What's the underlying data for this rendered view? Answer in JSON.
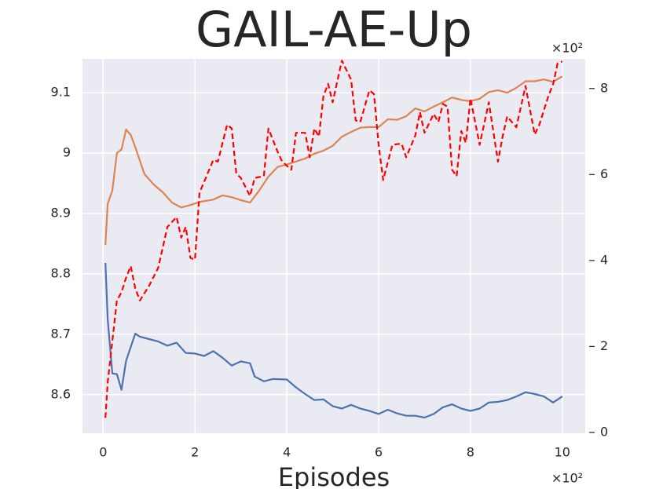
{
  "chart_data": {
    "type": "line",
    "title": "GAIL-AE-Up",
    "x_label": "Episodes",
    "x_multiplier": "×10²",
    "y2_multiplier": "×10²",
    "xlim": [
      -0.45,
      10.5
    ],
    "xticks": [
      0,
      2,
      4,
      6,
      8,
      10
    ],
    "ylim": [
      8.536,
      9.156
    ],
    "yticks": [
      8.6,
      8.7,
      8.8,
      8.9,
      9.0,
      9.1
    ],
    "y2lim": [
      -0.02,
      8.69
    ],
    "y2ticks": [
      0,
      2,
      4,
      6,
      8
    ],
    "grid": true,
    "background": "#eaeaf2",
    "series": [
      {
        "color": "#4c72b0",
        "dashed": false,
        "x": [
          0.05,
          0.1,
          0.2,
          0.3,
          0.4,
          0.5,
          0.7,
          0.8,
          1.0,
          1.2,
          1.4,
          1.6,
          1.8,
          2.0,
          2.2,
          2.4,
          2.6,
          2.8,
          3.0,
          3.2,
          3.3,
          3.5,
          3.7,
          4.0,
          4.2,
          4.4,
          4.6,
          4.8,
          5.0,
          5.2,
          5.4,
          5.6,
          5.8,
          6.0,
          6.2,
          6.4,
          6.6,
          6.8,
          7.0,
          7.2,
          7.4,
          7.6,
          7.8,
          8.0,
          8.2,
          8.4,
          8.6,
          8.8,
          9.0,
          9.2,
          9.4,
          9.6,
          9.8,
          10.0
        ],
        "values": [
          8.818,
          8.725,
          8.635,
          8.634,
          8.608,
          8.656,
          8.701,
          8.696,
          8.692,
          8.688,
          8.681,
          8.686,
          8.669,
          8.668,
          8.664,
          8.672,
          8.661,
          8.648,
          8.655,
          8.652,
          8.63,
          8.622,
          8.626,
          8.625,
          8.612,
          8.601,
          8.591,
          8.592,
          8.581,
          8.577,
          8.583,
          8.577,
          8.573,
          8.568,
          8.575,
          8.569,
          8.565,
          8.565,
          8.562,
          8.568,
          8.579,
          8.584,
          8.577,
          8.573,
          8.577,
          8.587,
          8.588,
          8.591,
          8.597,
          8.604,
          8.601,
          8.597,
          8.587,
          8.597
        ]
      },
      {
        "color": "#dd8452",
        "dashed": false,
        "x": [
          0.05,
          0.1,
          0.2,
          0.3,
          0.4,
          0.5,
          0.6,
          0.7,
          0.9,
          1.1,
          1.3,
          1.5,
          1.7,
          1.9,
          2.1,
          2.4,
          2.6,
          2.8,
          3.0,
          3.2,
          3.4,
          3.6,
          3.8,
          4.0,
          4.2,
          4.4,
          4.6,
          4.8,
          5.0,
          5.2,
          5.4,
          5.6,
          5.8,
          6.0,
          6.2,
          6.4,
          6.6,
          6.8,
          7.0,
          7.2,
          7.4,
          7.6,
          7.8,
          8.0,
          8.2,
          8.4,
          8.6,
          8.8,
          9.0,
          9.2,
          9.4,
          9.6,
          9.8,
          10.0
        ],
        "values": [
          8.848,
          8.916,
          8.938,
          9.0,
          9.006,
          9.039,
          9.03,
          9.01,
          8.965,
          8.948,
          8.935,
          8.918,
          8.91,
          8.914,
          8.919,
          8.923,
          8.93,
          8.927,
          8.922,
          8.918,
          8.938,
          8.961,
          8.977,
          8.981,
          8.986,
          8.991,
          8.999,
          9.004,
          9.012,
          9.027,
          9.035,
          9.042,
          9.043,
          9.043,
          9.056,
          9.055,
          9.061,
          9.074,
          9.069,
          9.077,
          9.084,
          9.092,
          9.088,
          9.086,
          9.09,
          9.101,
          9.104,
          9.1,
          9.108,
          9.119,
          9.119,
          9.122,
          9.118,
          9.127
        ]
      },
      {
        "color": "#ff0000",
        "dashed": true,
        "axis": "y2",
        "x": [
          0.05,
          0.1,
          0.3,
          0.4,
          0.5,
          0.6,
          0.7,
          0.8,
          1.0,
          1.2,
          1.4,
          1.6,
          1.7,
          1.8,
          1.9,
          2.0,
          2.1,
          2.2,
          2.4,
          2.5,
          2.7,
          2.8,
          2.9,
          3.0,
          3.2,
          3.3,
          3.5,
          3.6,
          3.8,
          3.9,
          4.1,
          4.2,
          4.4,
          4.5,
          4.6,
          4.7,
          4.8,
          4.9,
          5.0,
          5.2,
          5.4,
          5.5,
          5.6,
          5.8,
          5.9,
          6.0,
          6.1,
          6.3,
          6.5,
          6.6,
          6.8,
          6.9,
          7.0,
          7.2,
          7.3,
          7.4,
          7.5,
          7.6,
          7.7,
          7.8,
          7.9,
          8.0,
          8.2,
          8.4,
          8.6,
          8.7,
          8.8,
          9.0,
          9.2,
          9.4,
          9.5,
          9.7,
          9.8,
          9.9,
          10.0
        ],
        "values": [
          0.34,
          1.16,
          3.07,
          3.26,
          3.6,
          3.87,
          3.35,
          3.07,
          3.41,
          3.83,
          4.78,
          5.01,
          4.53,
          4.78,
          4.06,
          4.02,
          5.58,
          5.83,
          6.34,
          6.3,
          7.16,
          7.07,
          6.02,
          5.92,
          5.5,
          5.92,
          5.96,
          7.07,
          6.53,
          6.3,
          6.11,
          6.97,
          6.97,
          6.4,
          7.07,
          6.88,
          7.83,
          8.11,
          7.68,
          8.65,
          8.21,
          7.26,
          7.22,
          7.96,
          7.87,
          6.69,
          5.87,
          6.69,
          6.72,
          6.4,
          6.91,
          7.45,
          6.97,
          7.41,
          7.22,
          7.64,
          7.58,
          6.11,
          5.96,
          7.01,
          6.74,
          7.77,
          6.69,
          7.68,
          6.3,
          6.88,
          7.35,
          7.1,
          8.06,
          6.93,
          7.16,
          7.83,
          8.1,
          8.59,
          8.63
        ]
      }
    ]
  }
}
